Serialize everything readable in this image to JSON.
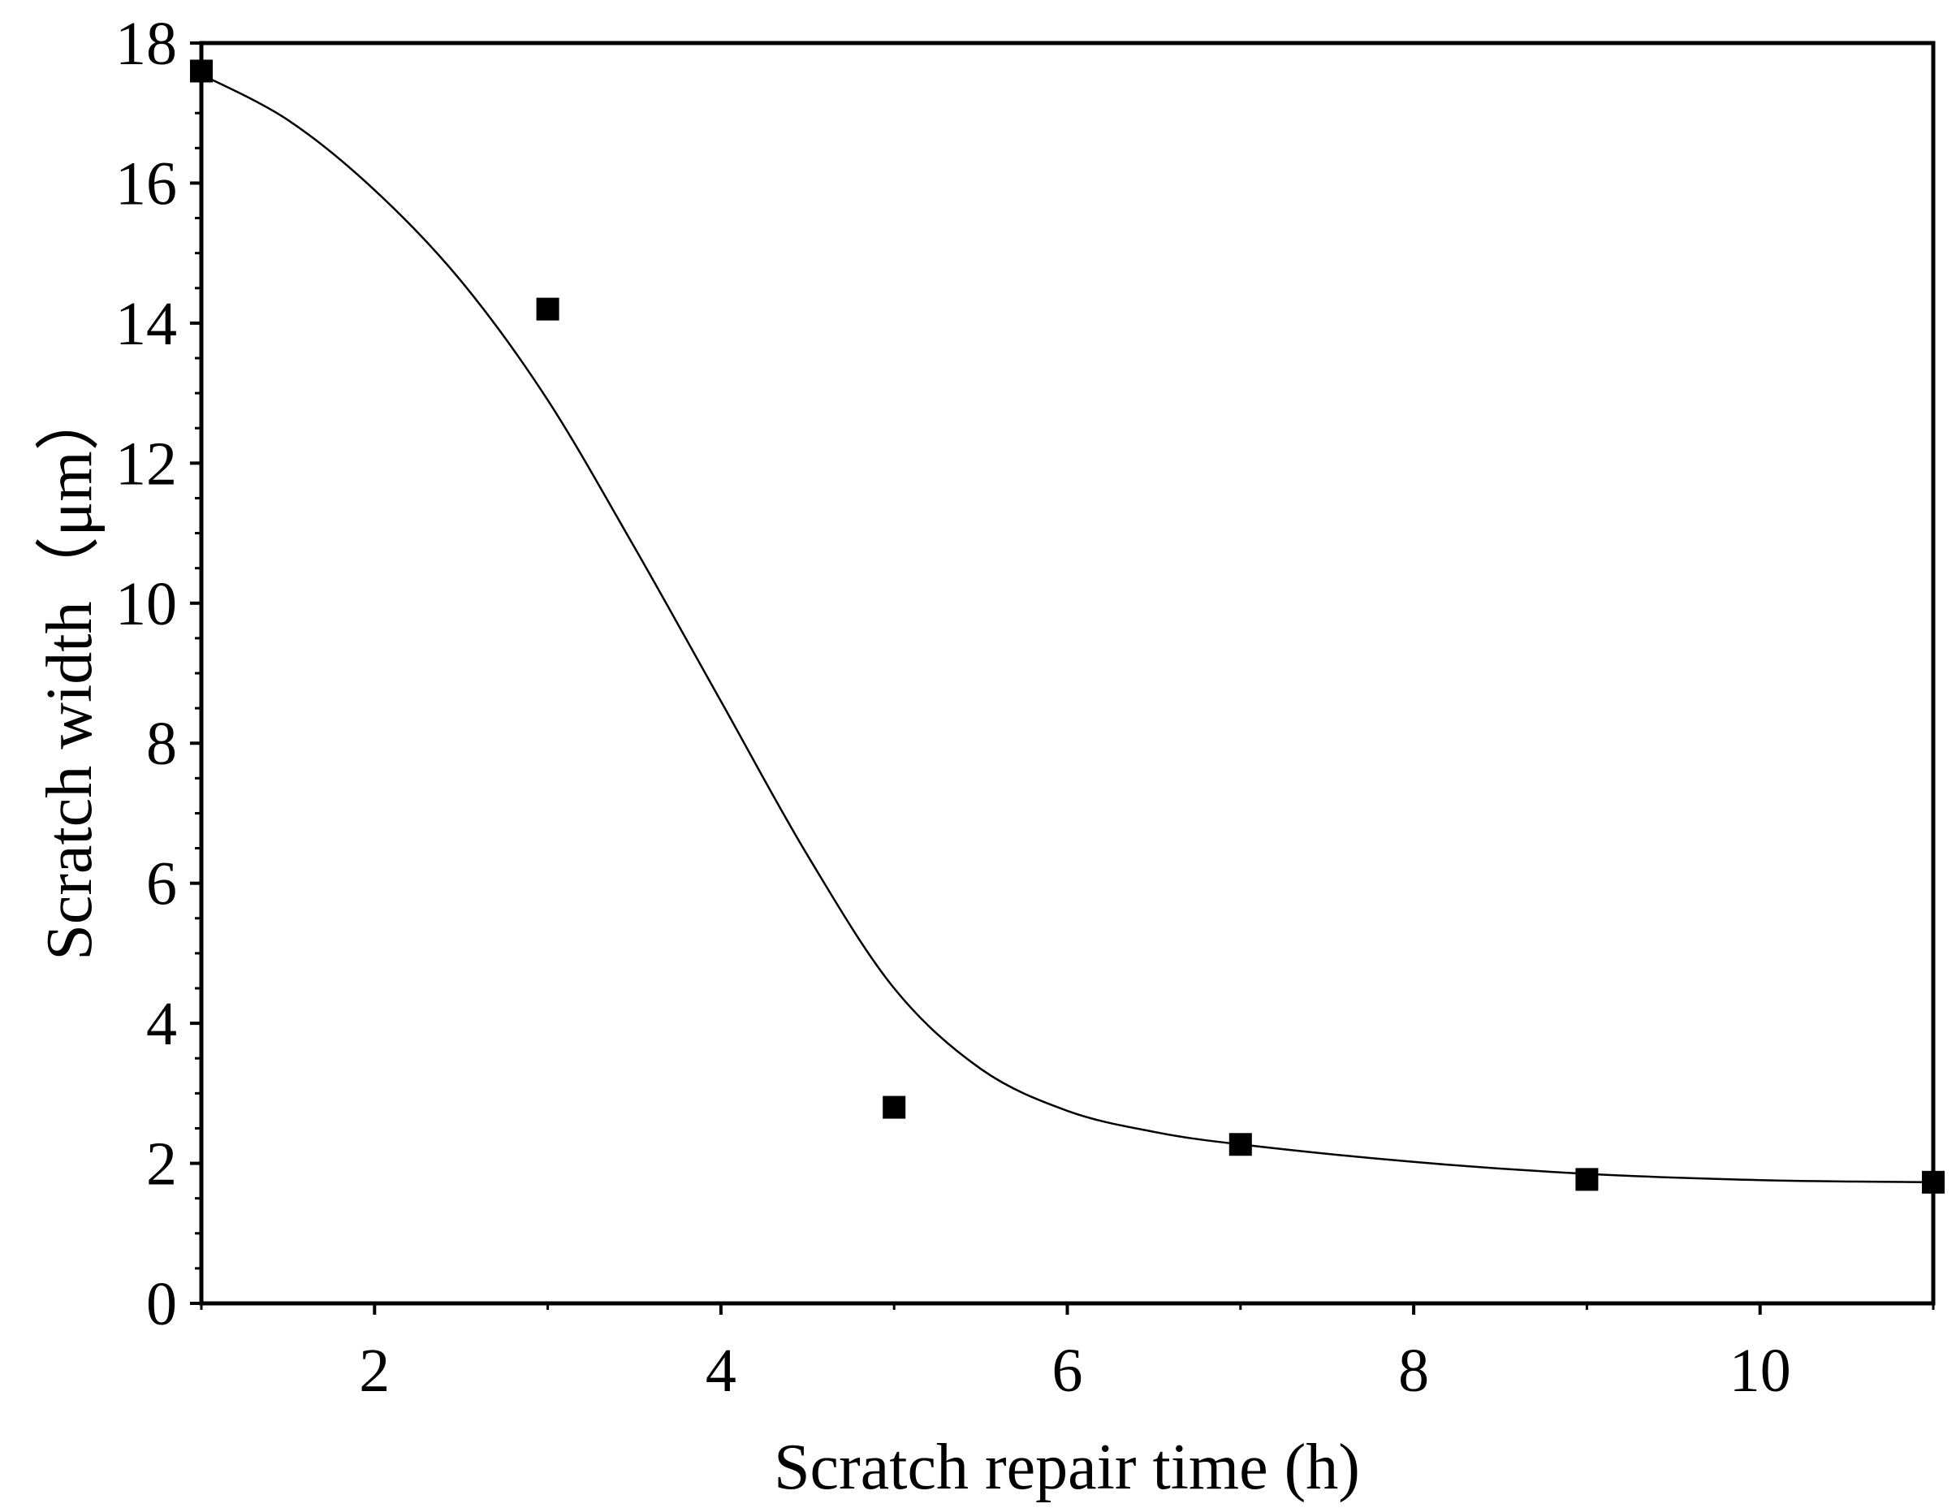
{
  "chart_data": {
    "type": "scatter",
    "title": "",
    "xlabel": "Scratch repair time (h)",
    "ylabel": "Scratch width（μm）",
    "xlim": [
      1,
      11
    ],
    "ylim": [
      0,
      18
    ],
    "x_ticks": [
      2,
      4,
      6,
      8,
      10
    ],
    "y_ticks": [
      0,
      2,
      4,
      6,
      8,
      10,
      12,
      14,
      16,
      18
    ],
    "grid": false,
    "legend": "none",
    "series": [
      {
        "marker": "square",
        "color": "#000000",
        "points": [
          {
            "x": 1,
            "y": 17.6
          },
          {
            "x": 3,
            "y": 14.2
          },
          {
            "x": 5,
            "y": 2.8
          },
          {
            "x": 7,
            "y": 2.27
          },
          {
            "x": 9,
            "y": 1.77
          },
          {
            "x": 11,
            "y": 1.73
          }
        ]
      }
    ],
    "fit_curve": {
      "color": "#000000",
      "points": [
        {
          "x": 1,
          "y": 17.55
        },
        {
          "x": 1.5,
          "y": 16.9
        },
        {
          "x": 2,
          "y": 15.9
        },
        {
          "x": 2.5,
          "y": 14.6
        },
        {
          "x": 3,
          "y": 12.9
        },
        {
          "x": 3.5,
          "y": 10.8
        },
        {
          "x": 4,
          "y": 8.6
        },
        {
          "x": 4.5,
          "y": 6.4
        },
        {
          "x": 5,
          "y": 4.5
        },
        {
          "x": 5.5,
          "y": 3.35
        },
        {
          "x": 6,
          "y": 2.75
        },
        {
          "x": 6.5,
          "y": 2.45
        },
        {
          "x": 7,
          "y": 2.27
        },
        {
          "x": 8,
          "y": 2.02
        },
        {
          "x": 9,
          "y": 1.85
        },
        {
          "x": 10,
          "y": 1.76
        },
        {
          "x": 11,
          "y": 1.73
        }
      ]
    }
  }
}
